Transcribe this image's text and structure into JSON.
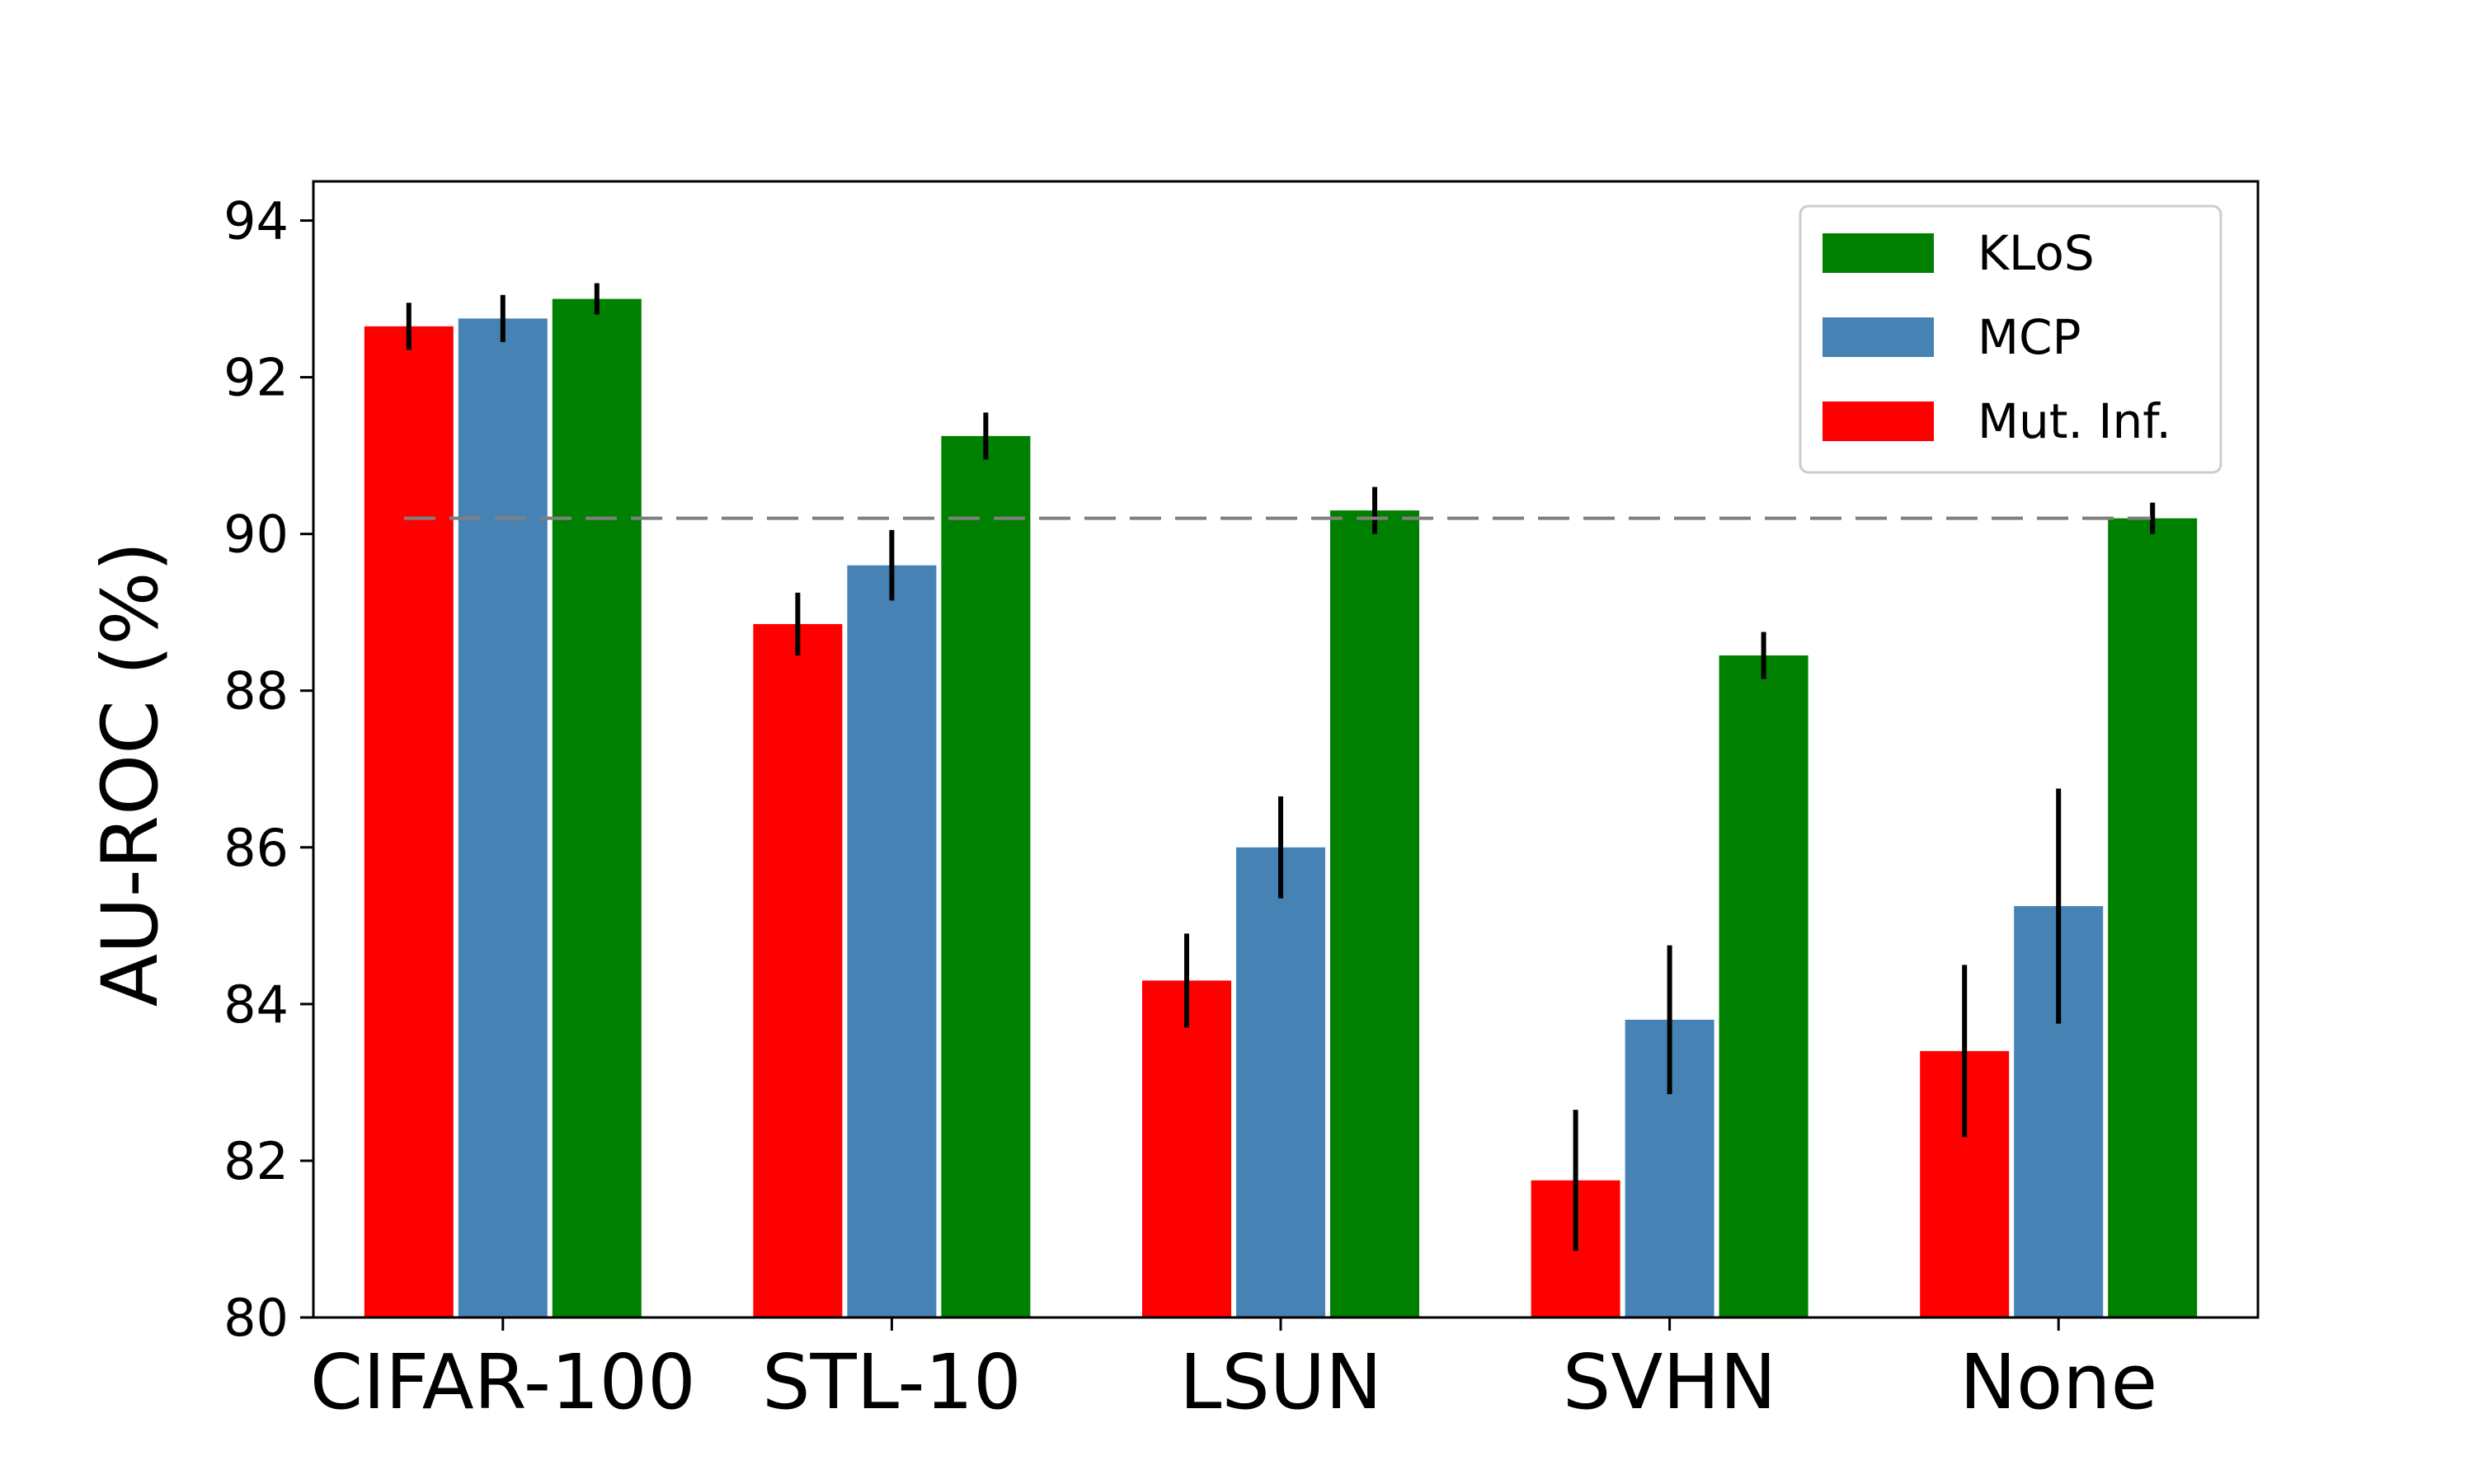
{
  "chart_data": {
    "type": "bar",
    "title": "",
    "xlabel": "",
    "ylabel": "AU-ROC (%)",
    "ylim": [
      80,
      94.5
    ],
    "yticks": [
      80,
      82,
      84,
      86,
      88,
      90,
      92,
      94
    ],
    "ytick_labels": [
      "80",
      "82",
      "84",
      "86",
      "88",
      "90",
      "92",
      "94"
    ],
    "categories": [
      "CIFAR-100",
      "STL-10",
      "LSUN",
      "SVHN",
      "None"
    ],
    "series": [
      {
        "name": "Mut. Inf.",
        "color": "#ff0000",
        "values": [
          92.65,
          88.85,
          84.3,
          81.75,
          83.4
        ],
        "errors": [
          0.3,
          0.4,
          0.6,
          0.9,
          1.1
        ]
      },
      {
        "name": "MCP",
        "color": "#4682b4",
        "values": [
          92.75,
          89.6,
          86.0,
          83.8,
          85.25
        ],
        "errors": [
          0.3,
          0.45,
          0.65,
          0.95,
          1.5
        ]
      },
      {
        "name": "KLoS",
        "color": "#008000",
        "values": [
          93.0,
          91.25,
          90.3,
          88.45,
          90.2
        ],
        "errors": [
          0.2,
          0.3,
          0.3,
          0.3,
          0.2
        ]
      }
    ],
    "reference_line": {
      "y": 90.2,
      "style": "dashed",
      "color": "#7f7f7f"
    },
    "legend": {
      "position": "top-right",
      "order": [
        "KLoS",
        "MCP",
        "Mut. Inf."
      ]
    },
    "grid": false
  }
}
